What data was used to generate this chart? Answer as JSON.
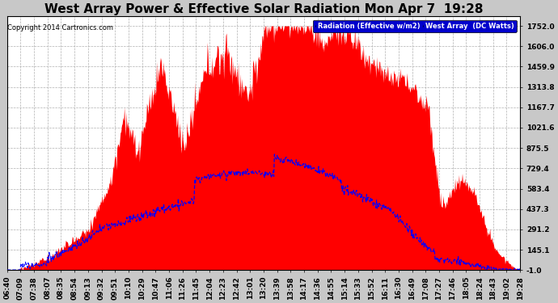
{
  "title": "West Array Power & Effective Solar Radiation Mon Apr 7  19:28",
  "copyright": "Copyright 2014 Cartronics.com",
  "legend_labels": [
    "Radiation (Effective w/m2)",
    "West Array  (DC Watts)"
  ],
  "legend_bg_colors": [
    "#0000cc",
    "#cc0000"
  ],
  "legend_text_color": "#ffffff",
  "background_color": "#c8c8c8",
  "plot_bg_color": "#ffffff",
  "y_ticks": [
    -1.0,
    145.1,
    291.2,
    437.3,
    583.4,
    729.4,
    875.5,
    1021.6,
    1167.7,
    1313.8,
    1459.9,
    1606.0,
    1752.0
  ],
  "ylim": [
    -1.0,
    1820.0
  ],
  "x_tick_labels": [
    "06:40",
    "07:09",
    "07:38",
    "08:07",
    "08:35",
    "08:54",
    "09:13",
    "09:32",
    "09:51",
    "10:10",
    "10:29",
    "10:47",
    "11:06",
    "11:26",
    "11:45",
    "12:04",
    "12:23",
    "12:42",
    "13:01",
    "13:20",
    "13:39",
    "13:58",
    "14:17",
    "14:36",
    "14:55",
    "15:14",
    "15:33",
    "15:52",
    "16:11",
    "16:30",
    "16:49",
    "17:08",
    "17:27",
    "17:46",
    "18:05",
    "18:24",
    "18:43",
    "19:02",
    "19:28"
  ],
  "fill_color": "#ff0000",
  "line_color": "#0000ff",
  "grid_color": "#b0b0b0",
  "title_fontsize": 11,
  "axis_fontsize": 6.5,
  "copyright_fontsize": 6,
  "title_color": "#000000"
}
